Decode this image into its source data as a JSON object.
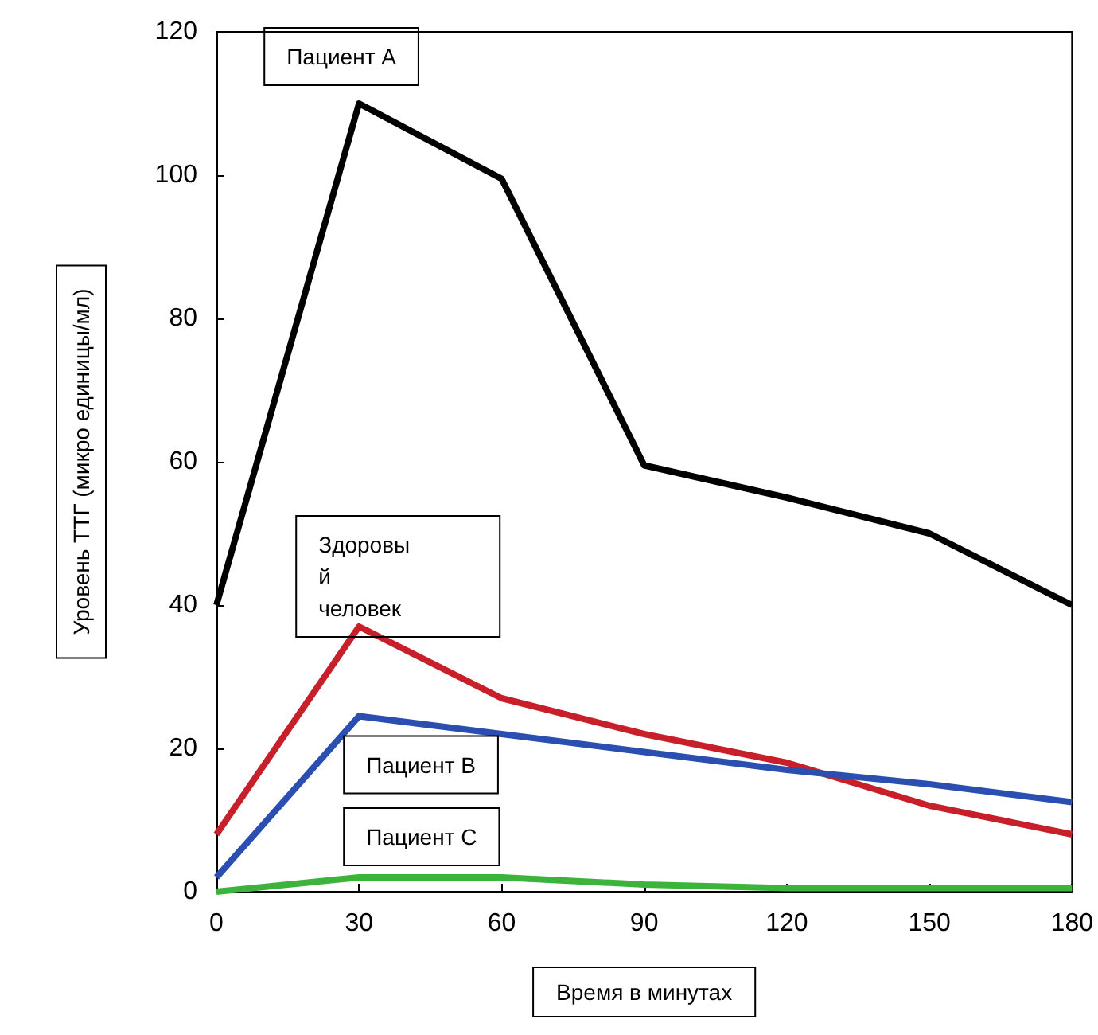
{
  "chart_data": {
    "type": "line",
    "xlabel": "Время в минутах",
    "ylabel": "Уровень ТТГ (микро единицы/мл)",
    "x": [
      0,
      30,
      60,
      90,
      120,
      150,
      180
    ],
    "series": [
      {
        "name": "Пациент A",
        "color": "#000000",
        "values": [
          40,
          110,
          99.5,
          59.5,
          55,
          50,
          40
        ]
      },
      {
        "name": "Здоровый человек",
        "color": "#c8202a",
        "values": [
          8,
          37,
          27,
          22,
          18,
          12,
          8
        ]
      },
      {
        "name": "Пациент B",
        "color": "#2a4fb0",
        "values": [
          2,
          24.5,
          22,
          19.5,
          17,
          15,
          12.5
        ]
      },
      {
        "name": "Пациент C",
        "color": "#3cb43c",
        "values": [
          0,
          2,
          2,
          1,
          0.5,
          0.5,
          0.5
        ]
      }
    ],
    "xlim": [
      0,
      180
    ],
    "xticks": [
      0,
      30,
      60,
      90,
      120,
      150,
      180
    ],
    "ylim": [
      0,
      120
    ],
    "yticks": [
      0,
      20,
      40,
      60,
      80,
      100,
      120
    ],
    "grid": false,
    "legend": false,
    "marker": "none",
    "line_style": "solid"
  }
}
